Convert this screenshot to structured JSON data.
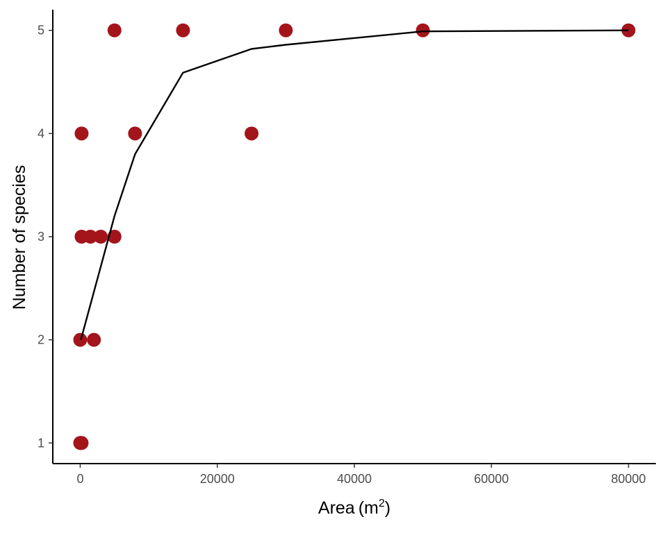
{
  "colors": {
    "point": "#a3141b",
    "curve": "#000000",
    "axis": "#000000",
    "tick_text": "#4d4d4d"
  },
  "chart_data": {
    "type": "scatter",
    "title": "",
    "xlabel": "Area",
    "xlabel_unit_base": "m",
    "xlabel_unit_exp": "2",
    "ylabel": "Number of species",
    "xlim": [
      -4000,
      84000
    ],
    "ylim": [
      0.8,
      5.2
    ],
    "x_ticks": [
      0,
      20000,
      40000,
      60000,
      80000
    ],
    "x_tick_labels": [
      "0",
      "20000",
      "40000",
      "60000",
      "80000"
    ],
    "y_ticks": [
      1,
      2,
      3,
      4,
      5
    ],
    "y_tick_labels": [
      "1",
      "2",
      "3",
      "4",
      "5"
    ],
    "grid": false,
    "legend": "none",
    "series": [
      {
        "kind": "points",
        "x": [
          0,
          100,
          200,
          0,
          2000,
          200,
          1500,
          3000,
          5000,
          200,
          8000,
          25000,
          5000,
          15000,
          30000,
          50000,
          80000
        ],
        "y": [
          1,
          1,
          1,
          2,
          2,
          3,
          3,
          3,
          3,
          4,
          4,
          4,
          5,
          5,
          5,
          5,
          5
        ]
      },
      {
        "kind": "line",
        "x": [
          100,
          5000,
          8000,
          15000,
          25000,
          30000,
          50000,
          80000
        ],
        "y": [
          2.0,
          3.2,
          3.8,
          4.59,
          4.82,
          4.86,
          4.99,
          5.0
        ]
      }
    ]
  }
}
